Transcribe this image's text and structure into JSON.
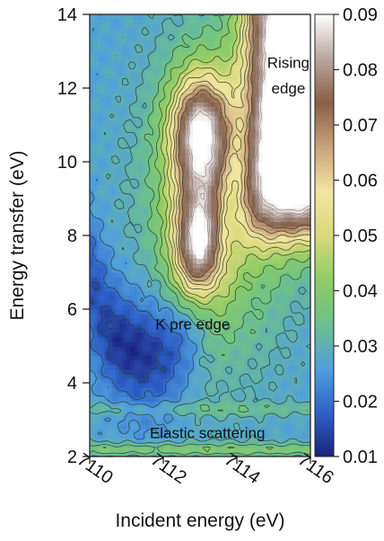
{
  "chart_data": {
    "type": "heatmap",
    "title": "",
    "xlabel": "Incident energy (eV)",
    "ylabel": "Energy transfer (eV)",
    "xlim": [
      7110,
      7116
    ],
    "ylim": [
      2,
      14
    ],
    "x_ticks": [
      "7110",
      "7112",
      "7114",
      "7116"
    ],
    "y_ticks": [
      "2",
      "4",
      "6",
      "8",
      "10",
      "12",
      "14"
    ],
    "colorbar": {
      "range": [
        0.01,
        0.09
      ],
      "ticks": [
        "0.01",
        "0.02",
        "0.03",
        "0.04",
        "0.05",
        "0.06",
        "0.07",
        "0.08",
        "0.09"
      ],
      "colormap": [
        "#1a237e",
        "#2f62c8",
        "#4fa0dc",
        "#6cc08c",
        "#8fcd63",
        "#d8d97a",
        "#f2e6a0",
        "#c8a27a",
        "#8a5f44",
        "#b9a6a0",
        "#ffffff"
      ]
    },
    "annotations": [
      {
        "text": "Rising",
        "x": 7115.4,
        "y": 12.7
      },
      {
        "text": "edge",
        "x": 7115.4,
        "y": 12.0
      },
      {
        "text": "K pre edge",
        "x": 7112.8,
        "y": 5.6
      },
      {
        "text": "Elastic scattering",
        "x": 7113.2,
        "y": 2.65
      }
    ],
    "features": [
      {
        "name": "elastic line",
        "x_center": 7113,
        "y_center": 2.2,
        "peak": 0.035
      },
      {
        "name": "K pre edge minimum",
        "x_center": 7111.3,
        "y_center": 5.0,
        "value": 0.015
      },
      {
        "name": "pre-edge peak (upper)",
        "x_center": 7113.0,
        "y_center": 10.9,
        "peak": 0.07
      },
      {
        "name": "pre-edge peak (lower)",
        "x_center": 7113.0,
        "y_center": 7.6,
        "peak": 0.07
      },
      {
        "name": "rising edge",
        "x_center": 7115.8,
        "y_center": 11.5,
        "peak": 0.09
      }
    ]
  }
}
